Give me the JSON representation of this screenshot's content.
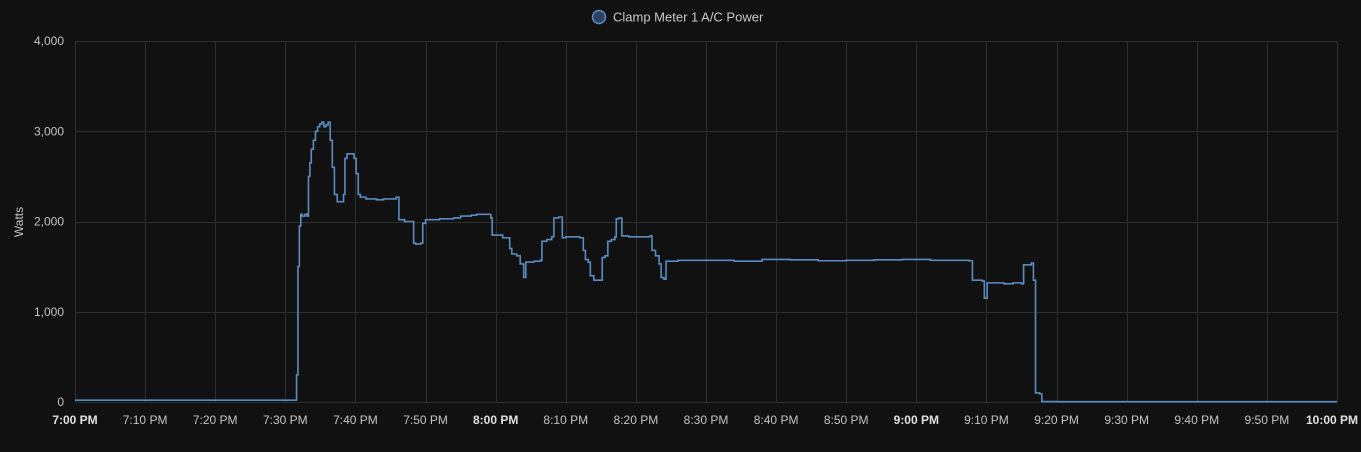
{
  "chart_data": {
    "type": "line",
    "step": true,
    "legend_position": "top-center",
    "grid": true,
    "ylabel": "Watts",
    "xlabel": "",
    "ylim": [
      0,
      4000
    ],
    "xlim_minutes": [
      0,
      180
    ],
    "x_units": "minutes after 7:00 PM",
    "y_ticks": [
      {
        "value": 0,
        "label": "0"
      },
      {
        "value": 1000,
        "label": "1,000"
      },
      {
        "value": 2000,
        "label": "2,000"
      },
      {
        "value": 3000,
        "label": "3,000"
      },
      {
        "value": 4000,
        "label": "4,000"
      }
    ],
    "x_ticks": [
      {
        "value": 0,
        "label": "7:00 PM",
        "bold": true
      },
      {
        "value": 10,
        "label": "7:10 PM",
        "bold": false
      },
      {
        "value": 20,
        "label": "7:20 PM",
        "bold": false
      },
      {
        "value": 30,
        "label": "7:30 PM",
        "bold": false
      },
      {
        "value": 40,
        "label": "7:40 PM",
        "bold": false
      },
      {
        "value": 50,
        "label": "7:50 PM",
        "bold": false
      },
      {
        "value": 60,
        "label": "8:00 PM",
        "bold": true
      },
      {
        "value": 70,
        "label": "8:10 PM",
        "bold": false
      },
      {
        "value": 80,
        "label": "8:20 PM",
        "bold": false
      },
      {
        "value": 90,
        "label": "8:30 PM",
        "bold": false
      },
      {
        "value": 100,
        "label": "8:40 PM",
        "bold": false
      },
      {
        "value": 110,
        "label": "8:50 PM",
        "bold": false
      },
      {
        "value": 120,
        "label": "9:00 PM",
        "bold": true
      },
      {
        "value": 130,
        "label": "9:10 PM",
        "bold": false
      },
      {
        "value": 140,
        "label": "9:20 PM",
        "bold": false
      },
      {
        "value": 150,
        "label": "9:30 PM",
        "bold": false
      },
      {
        "value": 160,
        "label": "9:40 PM",
        "bold": false
      },
      {
        "value": 170,
        "label": "9:50 PM",
        "bold": false
      },
      {
        "value": 180,
        "label": "10:00 PM",
        "bold": true
      }
    ],
    "series": [
      {
        "name": "Clamp Meter 1 A/C Power",
        "color": "#5b8cc1",
        "points": [
          [
            0,
            20
          ],
          [
            31.5,
            20
          ],
          [
            31.6,
            300
          ],
          [
            31.8,
            1500
          ],
          [
            32.0,
            1950
          ],
          [
            32.2,
            2080
          ],
          [
            32.4,
            2060
          ],
          [
            32.8,
            2080
          ],
          [
            33.1,
            2060
          ],
          [
            33.3,
            2500
          ],
          [
            33.5,
            2650
          ],
          [
            33.7,
            2800
          ],
          [
            34.0,
            2900
          ],
          [
            34.3,
            3000
          ],
          [
            34.6,
            3050
          ],
          [
            34.9,
            3080
          ],
          [
            35.2,
            3100
          ],
          [
            35.5,
            3050
          ],
          [
            35.8,
            3070
          ],
          [
            36.1,
            3100
          ],
          [
            36.4,
            2900
          ],
          [
            36.7,
            2600
          ],
          [
            37.0,
            2300
          ],
          [
            37.4,
            2220
          ],
          [
            38.3,
            2300
          ],
          [
            38.5,
            2700
          ],
          [
            38.8,
            2750
          ],
          [
            39.8,
            2700
          ],
          [
            40.1,
            2530
          ],
          [
            40.4,
            2300
          ],
          [
            40.7,
            2270
          ],
          [
            41.5,
            2250
          ],
          [
            43.0,
            2240
          ],
          [
            44.0,
            2250
          ],
          [
            45.8,
            2270
          ],
          [
            46.2,
            2020
          ],
          [
            47.0,
            2000
          ],
          [
            48.3,
            1760
          ],
          [
            48.6,
            1750
          ],
          [
            49.3,
            1760
          ],
          [
            49.6,
            1980
          ],
          [
            50.0,
            2020
          ],
          [
            52.0,
            2030
          ],
          [
            54.0,
            2040
          ],
          [
            55.0,
            2060
          ],
          [
            56.5,
            2070
          ],
          [
            57.3,
            2080
          ],
          [
            58.5,
            2080
          ],
          [
            59.3,
            2040
          ],
          [
            59.5,
            1850
          ],
          [
            61.0,
            1820
          ],
          [
            62.0,
            1700
          ],
          [
            62.3,
            1640
          ],
          [
            63.0,
            1620
          ],
          [
            63.5,
            1530
          ],
          [
            64.0,
            1380
          ],
          [
            64.3,
            1550
          ],
          [
            65.5,
            1560
          ],
          [
            66.4,
            1570
          ],
          [
            66.6,
            1780
          ],
          [
            67.3,
            1800
          ],
          [
            68.0,
            1830
          ],
          [
            68.3,
            2040
          ],
          [
            69.0,
            2050
          ],
          [
            69.5,
            1820
          ],
          [
            70.0,
            1830
          ],
          [
            72.0,
            1820
          ],
          [
            72.5,
            1680
          ],
          [
            72.8,
            1580
          ],
          [
            73.2,
            1550
          ],
          [
            73.5,
            1400
          ],
          [
            74.0,
            1350
          ],
          [
            75.0,
            1350
          ],
          [
            75.2,
            1600
          ],
          [
            75.6,
            1620
          ],
          [
            76.0,
            1780
          ],
          [
            76.5,
            1800
          ],
          [
            77.0,
            1830
          ],
          [
            77.2,
            2030
          ],
          [
            77.6,
            2040
          ],
          [
            78.0,
            1840
          ],
          [
            79.0,
            1830
          ],
          [
            81.0,
            1830
          ],
          [
            82.0,
            1840
          ],
          [
            82.3,
            1680
          ],
          [
            82.8,
            1620
          ],
          [
            83.3,
            1530
          ],
          [
            83.6,
            1380
          ],
          [
            84.0,
            1360
          ],
          [
            84.3,
            1560
          ],
          [
            86.0,
            1570
          ],
          [
            90.0,
            1570
          ],
          [
            94.0,
            1560
          ],
          [
            98.0,
            1580
          ],
          [
            102.0,
            1575
          ],
          [
            106.0,
            1565
          ],
          [
            110.0,
            1570
          ],
          [
            114.0,
            1575
          ],
          [
            118.0,
            1580
          ],
          [
            122.0,
            1570
          ],
          [
            125.0,
            1570
          ],
          [
            127.5,
            1565
          ],
          [
            128.0,
            1350
          ],
          [
            129.4,
            1340
          ],
          [
            129.7,
            1150
          ],
          [
            130.1,
            1320
          ],
          [
            132.5,
            1310
          ],
          [
            133.8,
            1320
          ],
          [
            135.0,
            1310
          ],
          [
            135.3,
            1520
          ],
          [
            136.4,
            1540
          ],
          [
            136.7,
            1350
          ],
          [
            137.0,
            100
          ],
          [
            137.6,
            90
          ],
          [
            137.9,
            5
          ],
          [
            140.0,
            3
          ],
          [
            180.0,
            3
          ]
        ]
      }
    ]
  }
}
